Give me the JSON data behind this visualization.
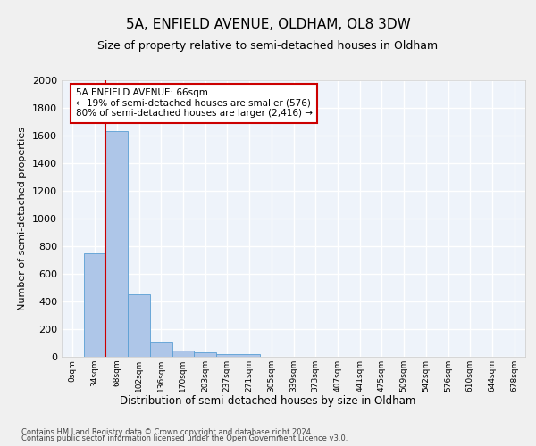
{
  "title": "5A, ENFIELD AVENUE, OLDHAM, OL8 3DW",
  "subtitle": "Size of property relative to semi-detached houses in Oldham",
  "xlabel": "Distribution of semi-detached houses by size in Oldham",
  "ylabel": "Number of semi-detached properties",
  "footnote1": "Contains HM Land Registry data © Crown copyright and database right 2024.",
  "footnote2": "Contains public sector information licensed under the Open Government Licence v3.0.",
  "bar_labels": [
    "0sqm",
    "34sqm",
    "68sqm",
    "102sqm",
    "136sqm",
    "170sqm",
    "203sqm",
    "237sqm",
    "271sqm",
    "305sqm",
    "339sqm",
    "373sqm",
    "407sqm",
    "441sqm",
    "475sqm",
    "509sqm",
    "542sqm",
    "576sqm",
    "610sqm",
    "644sqm",
    "678sqm"
  ],
  "bar_values": [
    0,
    750,
    1630,
    450,
    110,
    46,
    32,
    22,
    20,
    0,
    0,
    0,
    0,
    0,
    0,
    0,
    0,
    0,
    0,
    0,
    0
  ],
  "bar_color": "#aec6e8",
  "bar_edge_color": "#5a9fd4",
  "annotation_title": "5A ENFIELD AVENUE: 66sqm",
  "annotation_line1": "← 19% of semi-detached houses are smaller (576)",
  "annotation_line2": "80% of semi-detached houses are larger (2,416) →",
  "annotation_box_color": "#ffffff",
  "annotation_box_edge": "#cc0000",
  "vline_color": "#cc0000",
  "ylim": [
    0,
    2000
  ],
  "yticks": [
    0,
    200,
    400,
    600,
    800,
    1000,
    1200,
    1400,
    1600,
    1800,
    2000
  ],
  "background_color": "#eef3fa",
  "grid_color": "#ffffff",
  "fig_background": "#f0f0f0",
  "title_fontsize": 11,
  "subtitle_fontsize": 9
}
